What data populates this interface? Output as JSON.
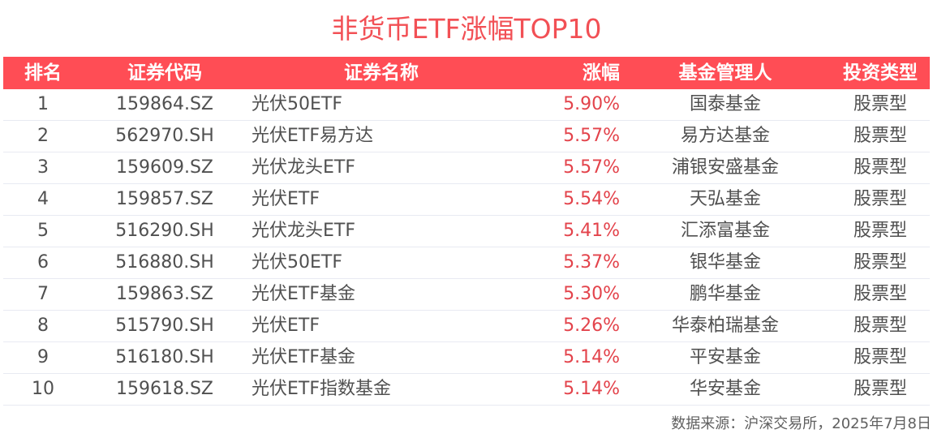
{
  "title": "非货币ETF涨幅TOP10",
  "colors": {
    "header_bg": "#ff4d55",
    "title": "#f25055",
    "change_text": "#e3434b",
    "body_text": "#505050"
  },
  "table": {
    "headers": [
      "排名",
      "证券代码",
      "证券名称",
      "涨幅",
      "基金管理人",
      "投资类型"
    ],
    "rows": [
      {
        "rank": "1",
        "code": "159864.SZ",
        "name": "光伏50ETF",
        "change": "5.90%",
        "manager": "国泰基金",
        "type": "股票型"
      },
      {
        "rank": "2",
        "code": "562970.SH",
        "name": "光伏ETF易方达",
        "change": "5.57%",
        "manager": "易方达基金",
        "type": "股票型"
      },
      {
        "rank": "3",
        "code": "159609.SZ",
        "name": "光伏龙头ETF",
        "change": "5.57%",
        "manager": "浦银安盛基金",
        "type": "股票型"
      },
      {
        "rank": "4",
        "code": "159857.SZ",
        "name": "光伏ETF",
        "change": "5.54%",
        "manager": "天弘基金",
        "type": "股票型"
      },
      {
        "rank": "5",
        "code": "516290.SH",
        "name": "光伏龙头ETF",
        "change": "5.41%",
        "manager": "汇添富基金",
        "type": "股票型"
      },
      {
        "rank": "6",
        "code": "516880.SH",
        "name": "光伏50ETF",
        "change": "5.37%",
        "manager": "银华基金",
        "type": "股票型"
      },
      {
        "rank": "7",
        "code": "159863.SZ",
        "name": "光伏ETF基金",
        "change": "5.30%",
        "manager": "鹏华基金",
        "type": "股票型"
      },
      {
        "rank": "8",
        "code": "515790.SH",
        "name": "光伏ETF",
        "change": "5.26%",
        "manager": "华泰柏瑞基金",
        "type": "股票型"
      },
      {
        "rank": "9",
        "code": "516180.SH",
        "name": "光伏ETF基金",
        "change": "5.14%",
        "manager": "平安基金",
        "type": "股票型"
      },
      {
        "rank": "10",
        "code": "159618.SZ",
        "name": "光伏ETF指数基金",
        "change": "5.14%",
        "manager": "华安基金",
        "type": "股票型"
      }
    ]
  },
  "source": "数据来源：沪深交易所，2025年7月8日",
  "chart_data": {
    "type": "table",
    "title": "非货币ETF涨幅TOP10",
    "columns": [
      "排名",
      "证券代码",
      "证券名称",
      "涨幅",
      "基金管理人",
      "投资类型"
    ],
    "rows": [
      [
        1,
        "159864.SZ",
        "光伏50ETF",
        5.9,
        "国泰基金",
        "股票型"
      ],
      [
        2,
        "562970.SH",
        "光伏ETF易方达",
        5.57,
        "易方达基金",
        "股票型"
      ],
      [
        3,
        "159609.SZ",
        "光伏龙头ETF",
        5.57,
        "浦银安盛基金",
        "股票型"
      ],
      [
        4,
        "159857.SZ",
        "光伏ETF",
        5.54,
        "天弘基金",
        "股票型"
      ],
      [
        5,
        "516290.SH",
        "光伏龙头ETF",
        5.41,
        "汇添富基金",
        "股票型"
      ],
      [
        6,
        "516880.SH",
        "光伏50ETF",
        5.37,
        "银华基金",
        "股票型"
      ],
      [
        7,
        "159863.SZ",
        "光伏ETF基金",
        5.3,
        "鹏华基金",
        "股票型"
      ],
      [
        8,
        "515790.SH",
        "光伏ETF",
        5.26,
        "华泰柏瑞基金",
        "股票型"
      ],
      [
        9,
        "516180.SH",
        "光伏ETF基金",
        5.14,
        "平安基金",
        "股票型"
      ],
      [
        10,
        "159618.SZ",
        "光伏ETF指数基金",
        5.14,
        "华安基金",
        "股票型"
      ]
    ],
    "value_unit": "%",
    "annotation": "数据来源：沪深交易所，2025年7月8日"
  }
}
